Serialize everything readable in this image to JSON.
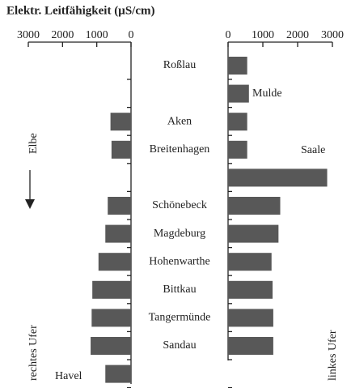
{
  "chart_data": {
    "type": "butterfly-bar",
    "title": "Elektr. Leitfähigkeit (µS/cm)",
    "annotation": "Elbe",
    "categories": [
      "Roßlau",
      "Mulde",
      "Aken",
      "Breitenhagen",
      "Saale",
      "Schönebeck",
      "Magdeburg",
      "Hohenwarthe",
      "Bittkau",
      "Tangermünde",
      "Sandau",
      "Havel"
    ],
    "series": [
      {
        "name": "rechtes Ufer",
        "side": "left",
        "color": "#585858",
        "values": [
          null,
          null,
          600,
          570,
          null,
          680,
          750,
          950,
          1130,
          1150,
          1180,
          750
        ]
      },
      {
        "name": "linkes Ufer",
        "side": "right",
        "color": "#585858",
        "values": [
          550,
          600,
          550,
          550,
          2850,
          1500,
          1450,
          1250,
          1280,
          1300,
          1300,
          null
        ]
      }
    ],
    "xlim": [
      0,
      3000
    ],
    "xticks": [
      0,
      1000,
      2000,
      3000
    ]
  }
}
